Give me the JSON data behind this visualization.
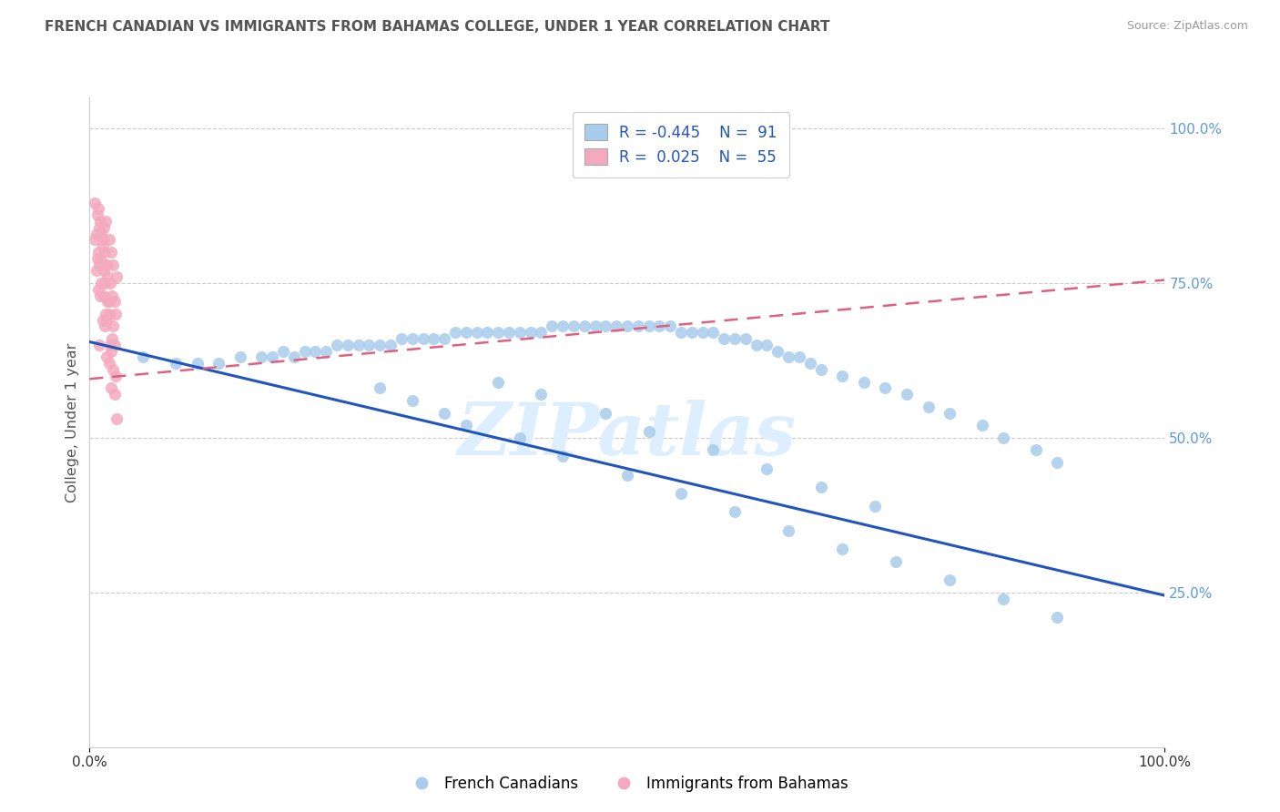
{
  "title": "FRENCH CANADIAN VS IMMIGRANTS FROM BAHAMAS COLLEGE, UNDER 1 YEAR CORRELATION CHART",
  "source": "Source: ZipAtlas.com",
  "ylabel": "College, Under 1 year",
  "xlim": [
    0.0,
    1.0
  ],
  "ylim": [
    0.0,
    1.05
  ],
  "yticks": [
    0.25,
    0.5,
    0.75,
    1.0
  ],
  "ytick_labels": [
    "25.0%",
    "50.0%",
    "75.0%",
    "100.0%"
  ],
  "blue_color": "#a8ccec",
  "pink_color": "#f4aabe",
  "blue_line_color": "#2255bb",
  "pink_line_color": "#e06080",
  "background_color": "#ffffff",
  "grid_color": "#cccccc",
  "watermark": "ZIPatlas",
  "blue_trend_y_start": 0.655,
  "blue_trend_y_end": 0.245,
  "pink_trend_y_start": 0.595,
  "pink_trend_y_end": 0.755,
  "blue_scatter_x": [
    0.05,
    0.08,
    0.1,
    0.12,
    0.14,
    0.16,
    0.17,
    0.18,
    0.19,
    0.2,
    0.21,
    0.22,
    0.23,
    0.24,
    0.25,
    0.26,
    0.27,
    0.28,
    0.29,
    0.3,
    0.31,
    0.32,
    0.33,
    0.34,
    0.35,
    0.36,
    0.37,
    0.38,
    0.39,
    0.4,
    0.41,
    0.42,
    0.43,
    0.44,
    0.45,
    0.46,
    0.47,
    0.48,
    0.49,
    0.5,
    0.51,
    0.52,
    0.53,
    0.54,
    0.55,
    0.56,
    0.57,
    0.58,
    0.59,
    0.6,
    0.61,
    0.62,
    0.63,
    0.64,
    0.65,
    0.66,
    0.67,
    0.68,
    0.7,
    0.72,
    0.74,
    0.76,
    0.78,
    0.8,
    0.83,
    0.85,
    0.88,
    0.9,
    0.3,
    0.33,
    0.27,
    0.35,
    0.4,
    0.44,
    0.5,
    0.55,
    0.6,
    0.65,
    0.7,
    0.75,
    0.8,
    0.85,
    0.9,
    0.38,
    0.42,
    0.48,
    0.52,
    0.58,
    0.63,
    0.68,
    0.73
  ],
  "blue_scatter_y": [
    0.63,
    0.62,
    0.62,
    0.62,
    0.63,
    0.63,
    0.63,
    0.64,
    0.63,
    0.64,
    0.64,
    0.64,
    0.65,
    0.65,
    0.65,
    0.65,
    0.65,
    0.65,
    0.66,
    0.66,
    0.66,
    0.66,
    0.66,
    0.67,
    0.67,
    0.67,
    0.67,
    0.67,
    0.67,
    0.67,
    0.67,
    0.67,
    0.68,
    0.68,
    0.68,
    0.68,
    0.68,
    0.68,
    0.68,
    0.68,
    0.68,
    0.68,
    0.68,
    0.68,
    0.67,
    0.67,
    0.67,
    0.67,
    0.66,
    0.66,
    0.66,
    0.65,
    0.65,
    0.64,
    0.63,
    0.63,
    0.62,
    0.61,
    0.6,
    0.59,
    0.58,
    0.57,
    0.55,
    0.54,
    0.52,
    0.5,
    0.48,
    0.46,
    0.56,
    0.54,
    0.58,
    0.52,
    0.5,
    0.47,
    0.44,
    0.41,
    0.38,
    0.35,
    0.32,
    0.3,
    0.27,
    0.24,
    0.21,
    0.59,
    0.57,
    0.54,
    0.51,
    0.48,
    0.45,
    0.42,
    0.39
  ],
  "pink_scatter_x": [
    0.005,
    0.01,
    0.012,
    0.015,
    0.018,
    0.02,
    0.022,
    0.025,
    0.008,
    0.013,
    0.016,
    0.019,
    0.023,
    0.007,
    0.011,
    0.014,
    0.017,
    0.021,
    0.024,
    0.009,
    0.012,
    0.015,
    0.018,
    0.022,
    0.006,
    0.01,
    0.014,
    0.018,
    0.023,
    0.008,
    0.013,
    0.017,
    0.021,
    0.005,
    0.009,
    0.013,
    0.016,
    0.02,
    0.024,
    0.007,
    0.011,
    0.015,
    0.019,
    0.022,
    0.006,
    0.01,
    0.014,
    0.018,
    0.023,
    0.008,
    0.012,
    0.016,
    0.02,
    0.025,
    0.009
  ],
  "pink_scatter_y": [
    0.88,
    0.85,
    0.82,
    0.85,
    0.82,
    0.8,
    0.78,
    0.76,
    0.87,
    0.84,
    0.78,
    0.75,
    0.72,
    0.86,
    0.83,
    0.8,
    0.76,
    0.73,
    0.7,
    0.84,
    0.81,
    0.78,
    0.72,
    0.68,
    0.83,
    0.79,
    0.75,
    0.7,
    0.65,
    0.8,
    0.77,
    0.72,
    0.66,
    0.82,
    0.78,
    0.73,
    0.69,
    0.64,
    0.6,
    0.79,
    0.75,
    0.7,
    0.65,
    0.61,
    0.77,
    0.73,
    0.68,
    0.62,
    0.57,
    0.74,
    0.69,
    0.63,
    0.58,
    0.53,
    0.65
  ]
}
